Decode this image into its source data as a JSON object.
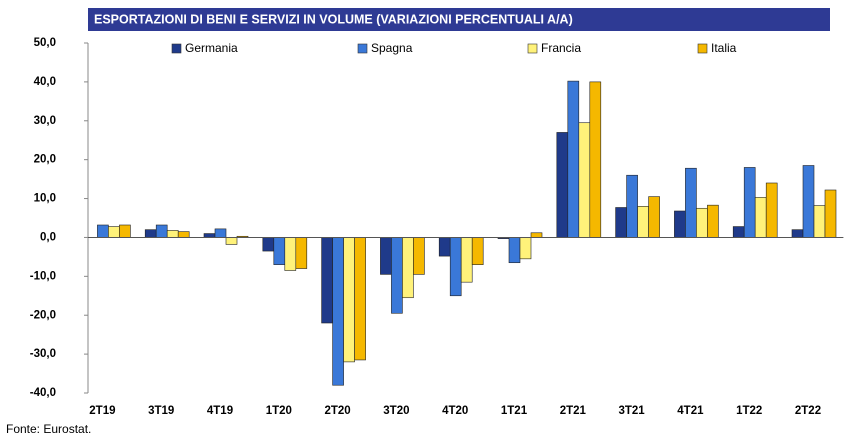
{
  "chart_data": {
    "type": "bar",
    "title": "ESPORTAZIONI DI BENI E SERVIZI IN VOLUME (VARIAZIONI PERCENTUALI A/A)",
    "source": "Fonte: Eurostat.",
    "categories": [
      "2T19",
      "3T19",
      "4T19",
      "1T20",
      "2T20",
      "3T20",
      "4T20",
      "1T21",
      "2T21",
      "3T21",
      "4T21",
      "1T22",
      "2T22"
    ],
    "series": [
      {
        "name": "Germania",
        "color": "#1f3a8a",
        "values": [
          0,
          2.0,
          1.0,
          -3.5,
          -22.0,
          -9.5,
          -4.8,
          -0.3,
          27.0,
          7.7,
          6.8,
          2.8,
          2.0
        ]
      },
      {
        "name": "Spagna",
        "color": "#3a78d8",
        "values": [
          3.2,
          3.2,
          2.2,
          -7.0,
          -38.0,
          -19.5,
          -15.0,
          -6.5,
          40.2,
          16.0,
          17.8,
          18.0,
          18.5
        ]
      },
      {
        "name": "Francia",
        "color": "#fff27a",
        "values": [
          2.8,
          1.8,
          -1.8,
          -8.5,
          -32.0,
          -15.5,
          -11.5,
          -5.5,
          29.5,
          8.0,
          7.5,
          10.3,
          8.2
        ]
      },
      {
        "name": "Italia",
        "color": "#f5b800",
        "values": [
          3.2,
          1.5,
          0.3,
          -8.0,
          -31.5,
          -9.5,
          -7.0,
          1.2,
          40.0,
          10.5,
          8.3,
          14.0,
          12.2
        ]
      }
    ],
    "ylim": [
      -40,
      50
    ],
    "yticks": [
      {
        "value": -40,
        "label": "-40,0"
      },
      {
        "value": -30,
        "label": "-30,0"
      },
      {
        "value": -20,
        "label": "-20,0"
      },
      {
        "value": -10,
        "label": "-10,0"
      },
      {
        "value": 0,
        "label": "0,0"
      },
      {
        "value": 10,
        "label": "10,0"
      },
      {
        "value": 20,
        "label": "20,0"
      },
      {
        "value": 30,
        "label": "30,0"
      },
      {
        "value": 40,
        "label": "40,0"
      },
      {
        "value": 50,
        "label": "50,0"
      }
    ],
    "legend": "top"
  }
}
